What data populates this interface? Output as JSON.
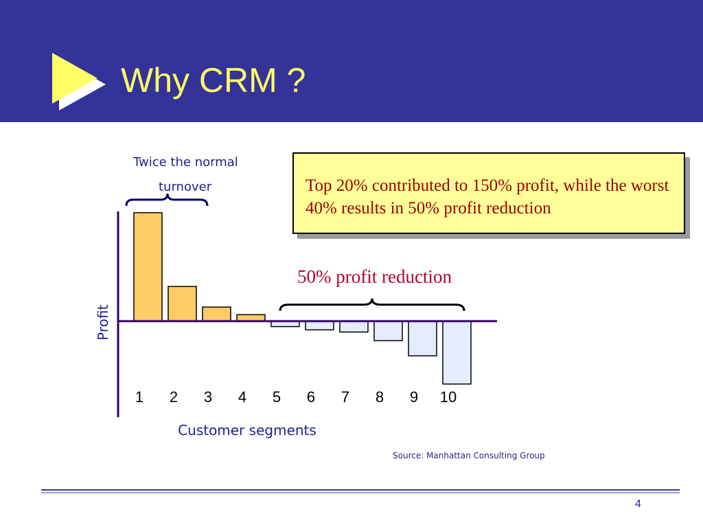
{
  "slide": {
    "title": "Why CRM ?",
    "page_number": "4",
    "source": "Source:  Manhattan Consulting Group"
  },
  "callout": {
    "text": "Top 20% contributed to 150% profit, while the worst 40% results in 50% profit reduction"
  },
  "annotations": {
    "top_bracket_line1": "Twice the normal",
    "top_bracket_line2": "turnover",
    "reduction_label": "50% profit reduction"
  },
  "colors": {
    "header": "#333399",
    "title": "#ffff66",
    "positive_bar": "#ffcc66",
    "negative_bar": "#e6ecff",
    "axis": "#330066",
    "label": "#1f1f8f"
  },
  "chart_data": {
    "type": "bar",
    "categories": [
      "1",
      "2",
      "3",
      "4",
      "5",
      "6",
      "7",
      "8",
      "9",
      "10"
    ],
    "values": [
      100,
      32,
      13,
      6,
      -5,
      -8,
      -10,
      -18,
      -32,
      -58
    ],
    "xlabel": "Customer segments",
    "ylabel": "Profit",
    "ylim": [
      -88,
      100
    ],
    "grid": false,
    "legend": "none"
  }
}
